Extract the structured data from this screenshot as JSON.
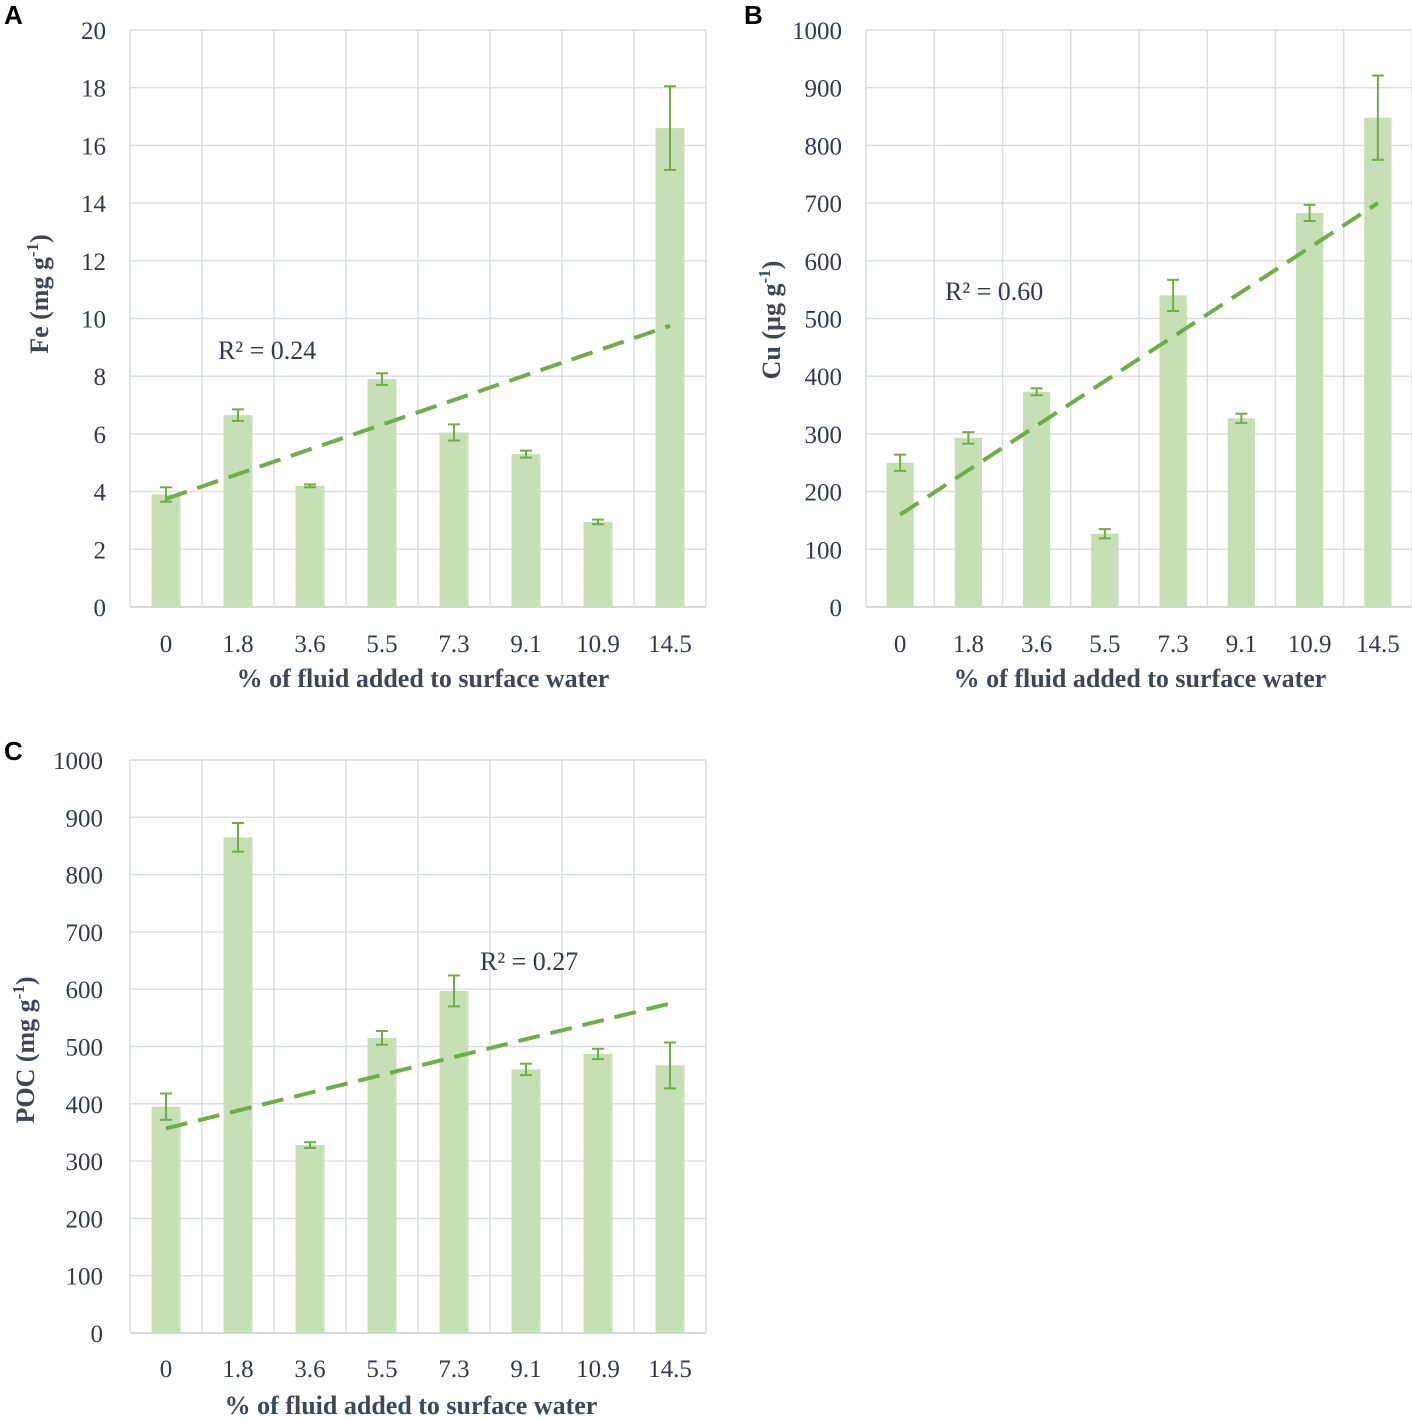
{
  "colors": {
    "bar": "#c5e0b4",
    "error_bar": "#70ad47",
    "trendline": "#70ad47",
    "grid": "#d9dde2",
    "text": "#333b48"
  },
  "chart_data": [
    {
      "panel": "A",
      "type": "bar",
      "categories": [
        "0",
        "1.8",
        "3.6",
        "5.5",
        "7.3",
        "9.1",
        "10.9",
        "14.5"
      ],
      "values": [
        3.9,
        6.65,
        4.2,
        7.9,
        6.05,
        5.3,
        2.95,
        16.6
      ],
      "errors": [
        0.25,
        0.2,
        0.05,
        0.2,
        0.28,
        0.12,
        0.08,
        1.45
      ],
      "trendline": {
        "start": 3.75,
        "end": 9.75,
        "style": "dashed"
      },
      "annotation": "R² = 0.24",
      "ylabel_main": "Fe (mg g",
      "ylabel_sup": "-1",
      "ylabel_close": ")",
      "xlabel": "% of fluid added to surface water",
      "ylim": [
        0,
        20
      ],
      "yticks": [
        "0",
        "2",
        "4",
        "6",
        "8",
        "10",
        "12",
        "14",
        "16",
        "18",
        "20"
      ],
      "grid": true
    },
    {
      "panel": "B",
      "type": "bar",
      "categories": [
        "0",
        "1.8",
        "3.6",
        "5.5",
        "7.3",
        "9.1",
        "10.9",
        "14.5"
      ],
      "values": [
        250,
        293,
        373,
        127,
        540,
        327,
        683,
        848
      ],
      "errors": [
        14,
        10,
        6,
        8,
        27,
        8,
        14,
        73
      ],
      "trendline": {
        "start": 160,
        "end": 700,
        "style": "dashed"
      },
      "annotation": "R² = 0.60",
      "ylabel_main": "Cu (µg g",
      "ylabel_sup": "-1",
      "ylabel_close": ")",
      "xlabel": "% of fluid added to surface water",
      "ylim": [
        0,
        1000
      ],
      "yticks": [
        "0",
        "100",
        "200",
        "300",
        "400",
        "500",
        "600",
        "700",
        "800",
        "900",
        "1000"
      ],
      "grid": true
    },
    {
      "panel": "C",
      "type": "bar",
      "categories": [
        "0",
        "1.8",
        "3.6",
        "5.5",
        "7.3",
        "9.1",
        "10.9",
        "14.5"
      ],
      "values": [
        395,
        865,
        328,
        515,
        597,
        460,
        487,
        467
      ],
      "errors": [
        23,
        25,
        5,
        12,
        27,
        10,
        9,
        40
      ],
      "trendline": {
        "start": 357,
        "end": 575,
        "style": "dashed"
      },
      "annotation": "R² = 0.27",
      "ylabel_main": "POC (mg g",
      "ylabel_sup": "-1",
      "ylabel_close": ")",
      "xlabel": "% of fluid added to surface water",
      "ylim": [
        0,
        1000
      ],
      "yticks": [
        "0",
        "100",
        "200",
        "300",
        "400",
        "500",
        "600",
        "700",
        "800",
        "900",
        "1000"
      ],
      "grid": true
    }
  ]
}
